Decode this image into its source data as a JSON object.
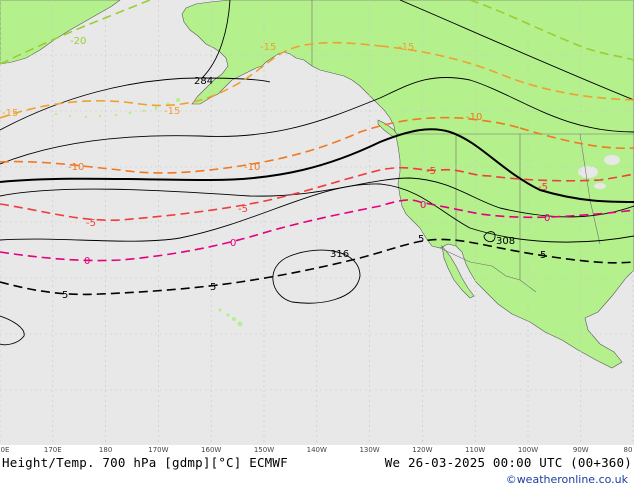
{
  "map": {
    "colors": {
      "ocean": "#e8e8e8",
      "land": "#b4f08c",
      "grid": "#c8c8c8",
      "height_contour": "#000000",
      "temp_minus20": "#9acd32",
      "temp_minus15": "#f0a030",
      "temp_minus10": "#f07820",
      "temp_minus5": "#f03c3c",
      "temp_0": "#e6007e",
      "temp_5": "#000000"
    },
    "contour_labels": {
      "h284": "284",
      "h308": "308",
      "h316": "316",
      "tm20": "-20",
      "tm15a": "-15",
      "tm15b": "-15",
      "tm15c": "-15",
      "tm15d": "-15",
      "tm10a": "-10",
      "tm10b": "-10",
      "tm10c": "-10",
      "tm5a": "-5",
      "tm5b": "-5",
      "tm5c": "-5",
      "tm5d": "-5",
      "t0a": "0",
      "t0b": "0",
      "t0c": "0",
      "t0d": "0",
      "t5a": "5",
      "t5b": "5",
      "t5c": "5",
      "t5d": "5"
    }
  },
  "axis": {
    "lon_labels": [
      "0E",
      "170E",
      "180",
      "170W",
      "160W",
      "150W",
      "140W",
      "130W",
      "120W",
      "110W",
      "100W",
      "90W",
      "80"
    ]
  },
  "footer": {
    "title_left": "Height/Temp. 700 hPa [gdmp][°C] ECMWF",
    "title_right": "We 26-03-2025 00:00 UTC (00+360)",
    "credit": "©weatheronline.co.uk"
  }
}
